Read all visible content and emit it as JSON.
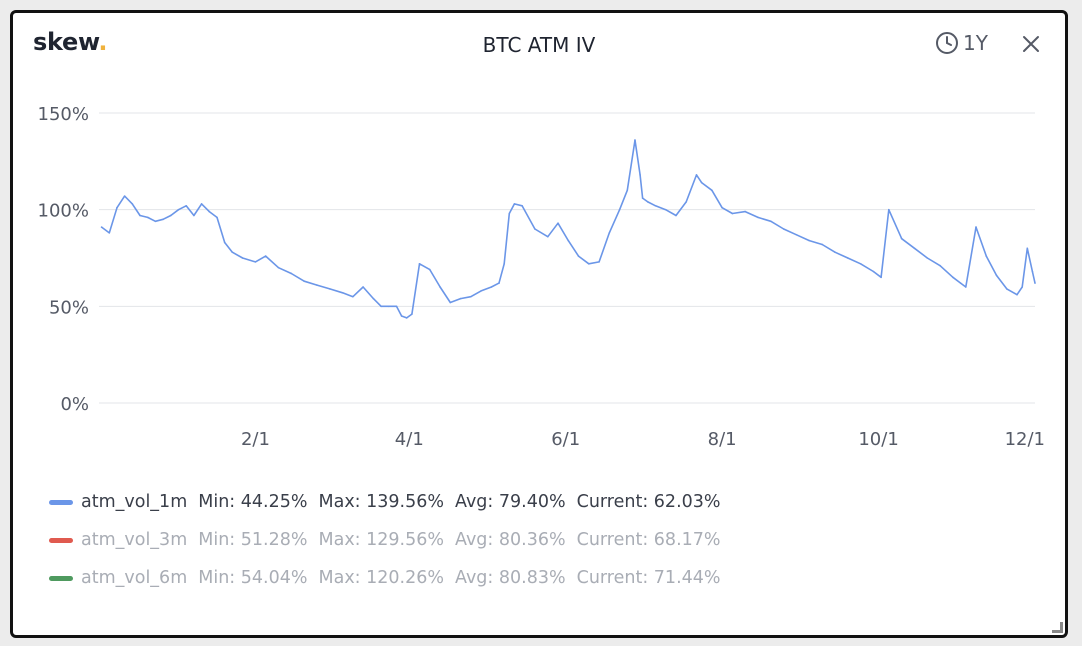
{
  "header": {
    "logo_text": "skew",
    "logo_dot": ".",
    "title": "BTC ATM IV",
    "range_icon": "clock-icon",
    "range_label": "1Y",
    "close_icon": "close-icon"
  },
  "colors": {
    "accent_dot": "#f0b23c",
    "series_1m": "#6b96e8",
    "series_3m": "#e05a4f",
    "series_6m": "#4f9a5f",
    "gridline": "#e3e4e8"
  },
  "chart_data": {
    "type": "line",
    "title": "BTC ATM IV",
    "xlabel": "",
    "ylabel": "",
    "ylim": [
      0,
      150
    ],
    "y_ticks": [
      "0%",
      "50%",
      "100%",
      "150%"
    ],
    "y_tick_values": [
      0,
      50,
      100,
      150
    ],
    "x_ticks": [
      "2/1",
      "4/1",
      "6/1",
      "8/1",
      "10/1",
      "12/1"
    ],
    "x_tick_dates": [
      "2020-02-01",
      "2020-04-01",
      "2020-06-01",
      "2020-08-01",
      "2020-10-01",
      "2020-12-01"
    ],
    "xlim": [
      "2019-12-02",
      "2020-12-01"
    ],
    "grid": true,
    "legend_position": "bottom-left",
    "series": [
      {
        "name": "atm_vol_1m",
        "visible": true,
        "color": "#6b96e8",
        "stats": {
          "min": "Min: 44.25%",
          "max": "Max: 139.56%",
          "avg": "Avg: 79.40%",
          "current": "Current: 62.03%"
        },
        "x": [
          "2019-12-03",
          "2019-12-06",
          "2019-12-09",
          "2019-12-12",
          "2019-12-15",
          "2019-12-18",
          "2019-12-21",
          "2019-12-24",
          "2019-12-27",
          "2019-12-30",
          "2020-01-02",
          "2020-01-05",
          "2020-01-08",
          "2020-01-11",
          "2020-01-14",
          "2020-01-17",
          "2020-01-20",
          "2020-01-23",
          "2020-01-27",
          "2020-02-01",
          "2020-02-05",
          "2020-02-10",
          "2020-02-15",
          "2020-02-20",
          "2020-02-25",
          "2020-03-01",
          "2020-03-06",
          "2020-03-10",
          "2020-03-14",
          "2020-03-18",
          "2020-03-21",
          "2020-03-24",
          "2020-03-27",
          "2020-03-29",
          "2020-03-31",
          "2020-04-02",
          "2020-04-05",
          "2020-04-09",
          "2020-04-13",
          "2020-04-17",
          "2020-04-21",
          "2020-04-25",
          "2020-04-29",
          "2020-05-03",
          "2020-05-06",
          "2020-05-08",
          "2020-05-10",
          "2020-05-12",
          "2020-05-15",
          "2020-05-20",
          "2020-05-25",
          "2020-05-29",
          "2020-06-02",
          "2020-06-06",
          "2020-06-10",
          "2020-06-14",
          "2020-06-18",
          "2020-06-22",
          "2020-06-25",
          "2020-06-28",
          "2020-06-30",
          "2020-07-01",
          "2020-07-03",
          "2020-07-06",
          "2020-07-10",
          "2020-07-14",
          "2020-07-18",
          "2020-07-22",
          "2020-07-24",
          "2020-07-28",
          "2020-08-01",
          "2020-08-05",
          "2020-08-10",
          "2020-08-15",
          "2020-08-20",
          "2020-08-25",
          "2020-08-30",
          "2020-09-04",
          "2020-09-09",
          "2020-09-14",
          "2020-09-19",
          "2020-09-24",
          "2020-09-29",
          "2020-10-02",
          "2020-10-05",
          "2020-10-10",
          "2020-10-15",
          "2020-10-20",
          "2020-10-25",
          "2020-10-30",
          "2020-11-02",
          "2020-11-04",
          "2020-11-08",
          "2020-11-12",
          "2020-11-16",
          "2020-11-20",
          "2020-11-24",
          "2020-11-26",
          "2020-11-28",
          "2020-11-30",
          "2020-12-01"
        ],
        "y": [
          91,
          88,
          101,
          107,
          103,
          97,
          96,
          94,
          95,
          97,
          100,
          102,
          97,
          103,
          99,
          96,
          83,
          78,
          75,
          73,
          76,
          70,
          67,
          63,
          61,
          59,
          57,
          55,
          60,
          54,
          50,
          50,
          50,
          45,
          44,
          46,
          72,
          69,
          60,
          52,
          54,
          55,
          58,
          60,
          62,
          72,
          98,
          103,
          102,
          90,
          86,
          93,
          84,
          76,
          72,
          73,
          88,
          100,
          110,
          136,
          118,
          106,
          104,
          102,
          100,
          97,
          104,
          118,
          114,
          110,
          101,
          98,
          99,
          96,
          94,
          90,
          87,
          84,
          82,
          78,
          75,
          72,
          68,
          65,
          100,
          85,
          80,
          75,
          71,
          65,
          62,
          60,
          91,
          76,
          66,
          59,
          56,
          60,
          80,
          68,
          62
        ]
      },
      {
        "name": "atm_vol_3m",
        "visible": false,
        "color": "#e05a4f",
        "stats": {
          "min": "Min: 51.28%",
          "max": "Max: 129.56%",
          "avg": "Avg: 80.36%",
          "current": "Current: 68.17%"
        }
      },
      {
        "name": "atm_vol_6m",
        "visible": false,
        "color": "#4f9a5f",
        "stats": {
          "min": "Min: 54.04%",
          "max": "Max: 120.26%",
          "avg": "Avg: 80.83%",
          "current": "Current: 71.44%"
        }
      }
    ]
  }
}
